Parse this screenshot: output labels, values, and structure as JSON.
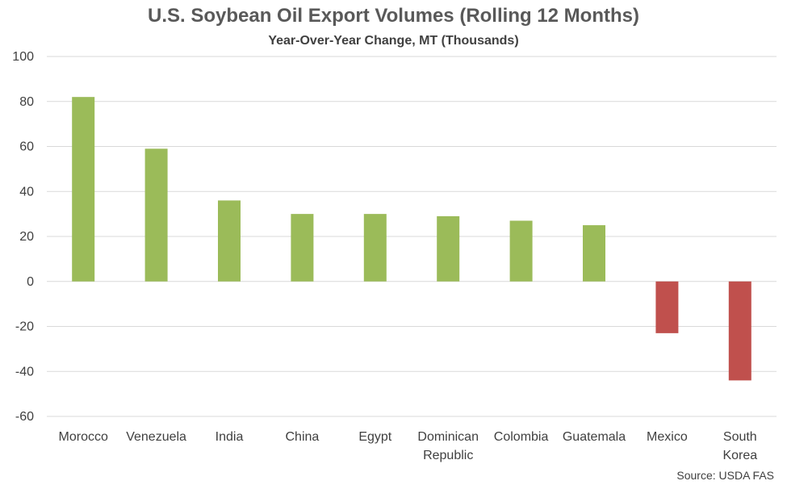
{
  "chart_data": {
    "type": "bar",
    "title": "U.S. Soybean Oil Export Volumes (Rolling 12 Months)",
    "subtitle": "Year-Over-Year Change, MT (Thousands)",
    "categories": [
      "Morocco",
      "Venezuela",
      "India",
      "China",
      "Egypt",
      "Dominican Republic",
      "Colombia",
      "Guatemala",
      "Mexico",
      "South Korea"
    ],
    "category_lines": [
      [
        "Morocco"
      ],
      [
        "Venezuela"
      ],
      [
        "India"
      ],
      [
        "China"
      ],
      [
        "Egypt"
      ],
      [
        "Dominican",
        "Republic"
      ],
      [
        "Colombia"
      ],
      [
        "Guatemala"
      ],
      [
        "Mexico"
      ],
      [
        "South",
        "Korea"
      ]
    ],
    "values": [
      82,
      59,
      36,
      30,
      30,
      29,
      27,
      25,
      -23,
      -44
    ],
    "ylim": [
      -60,
      100
    ],
    "yticks": [
      100,
      80,
      60,
      40,
      20,
      0,
      -20,
      -40,
      -60
    ],
    "grid": true,
    "legend": "none",
    "colors": {
      "positive": "#9BBB59",
      "negative": "#C0504D",
      "grid": "#D9D9D9",
      "text": "#404040"
    },
    "source": "Source: USDA FAS"
  }
}
